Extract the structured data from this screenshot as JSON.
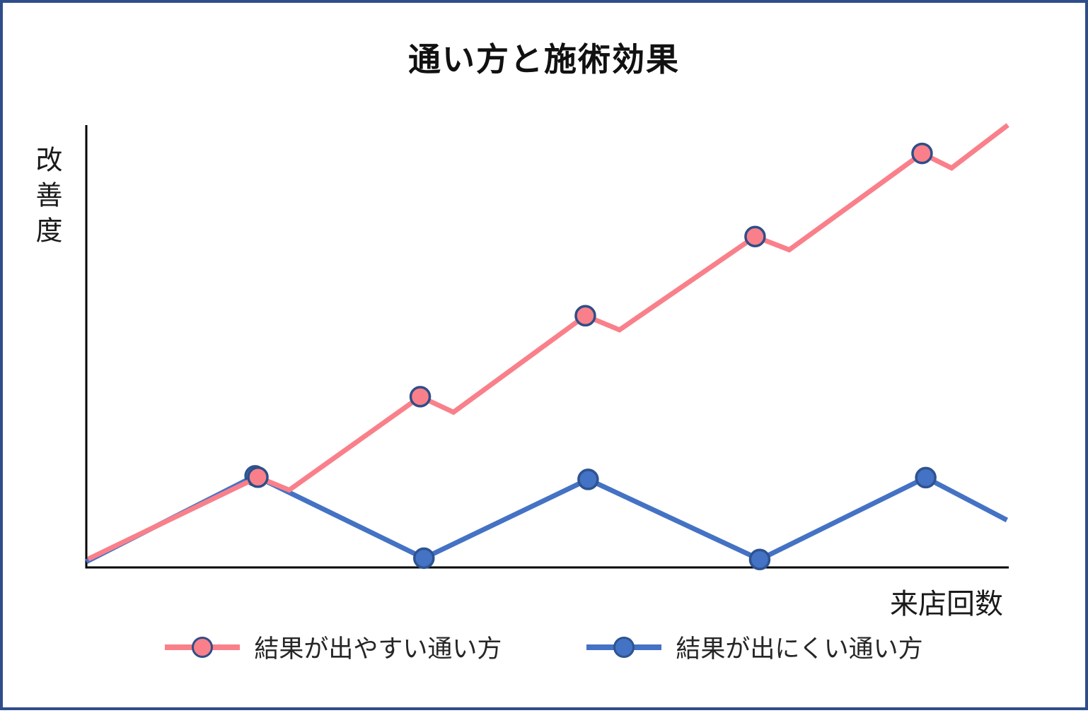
{
  "colors": {
    "page_border": "#2E4D8B",
    "axis": "#000000",
    "title_text": "#111111",
    "label_text": "#1a1a1a",
    "legend_text": "#262626"
  },
  "chart_data": {
    "type": "line",
    "title": "通い方と施術効果",
    "xlabel": "来店回数",
    "ylabel": "改善度",
    "grid": false,
    "axis_ticks": "none",
    "legend_position": "bottom",
    "units_note": "no numeric scales shown; point coordinates given as percent of plot area (x: 0=left axis to 100=right end, y: 0=baseline to 100=top)",
    "series": [
      {
        "name": "結果が出やすい通い方",
        "color": "#F9808A",
        "marker_border": "#2F4E87",
        "shape": "rising sawtooth: climbs to each visit, small dip after each visit, overall steady improvement",
        "points": [
          [
            0.2,
            1.9
          ],
          [
            18.6,
            20.4
          ],
          [
            22.0,
            17.5
          ],
          [
            36.2,
            38.6
          ],
          [
            39.8,
            35.1
          ],
          [
            54.1,
            56.9
          ],
          [
            57.8,
            53.7
          ],
          [
            72.5,
            74.8
          ],
          [
            76.2,
            71.8
          ],
          [
            90.6,
            93.6
          ],
          [
            93.8,
            90.3
          ],
          [
            99.9,
            100
          ]
        ],
        "markers": [
          [
            18.6,
            20.4
          ],
          [
            36.2,
            38.6
          ],
          [
            54.1,
            56.9
          ],
          [
            72.5,
            74.8
          ],
          [
            90.6,
            93.6
          ]
        ]
      },
      {
        "name": "結果が出にくい通い方",
        "color": "#4472C4",
        "marker_border": "#2E5391",
        "shape": "flat zigzag: gains after each visit are lost before the next, no net improvement",
        "points": [
          [
            0,
            1.3
          ],
          [
            18.3,
            20.7
          ],
          [
            36.6,
            2.1
          ],
          [
            54.4,
            19.9
          ],
          [
            73.0,
            1.8
          ],
          [
            91.0,
            20.3
          ],
          [
            99.8,
            10.7
          ]
        ],
        "markers": [
          [
            18.3,
            20.7
          ],
          [
            36.6,
            2.1
          ],
          [
            54.4,
            19.9
          ],
          [
            73.0,
            1.8
          ],
          [
            91.0,
            20.3
          ]
        ]
      }
    ]
  }
}
